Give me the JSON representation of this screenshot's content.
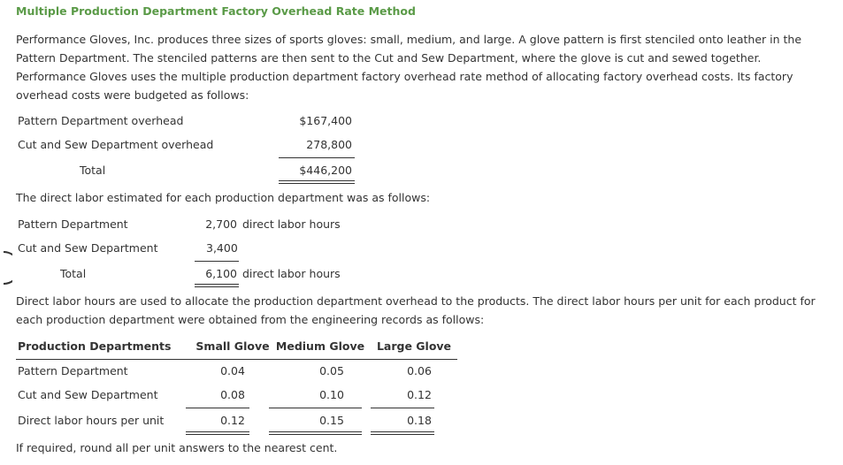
{
  "title": "Multiple Production Department Factory Overhead Rate Method",
  "intro": "Performance Gloves, Inc. produces three sizes of sports gloves: small, medium, and large. A glove pattern is first stenciled onto leather in the Pattern Department. The stenciled patterns are then sent to the Cut and Sew Department, where the glove is cut and sewed together. Performance Gloves uses the multiple production department factory overhead rate method of allocating factory overhead costs. Its factory overhead costs were budgeted as follows:",
  "overhead": {
    "rows": [
      [
        "Pattern Department overhead",
        "$167,400"
      ],
      [
        "Cut and Sew Department overhead",
        "278,800"
      ],
      [
        "Total",
        "$446,200"
      ]
    ]
  },
  "labor_intro": "The direct labor estimated for each production department was as follows:",
  "labor": {
    "rows": [
      [
        "Pattern Department",
        "2,700",
        "direct labor hours"
      ],
      [
        "Cut and Sew Department",
        "3,400"
      ],
      [
        "Total",
        "6,100",
        "direct labor hours"
      ]
    ]
  },
  "allocation_intro": "Direct labor hours are used to allocate the production department overhead to the products. The direct labor hours per unit for each product for each production department were obtained from the engineering records as follows:",
  "products": {
    "header": [
      "Production Departments",
      "Small Glove",
      "Medium Glove",
      "Large Glove"
    ],
    "rows": [
      [
        "Pattern Department",
        "0.04",
        "0.05",
        "0.06"
      ],
      [
        "Cut and Sew Department",
        "0.08",
        "0.10",
        "0.12"
      ],
      [
        "Direct labor hours per unit",
        "0.12",
        "0.15",
        "0.18"
      ]
    ]
  },
  "note": "If required, round all per unit answers to the nearest cent."
}
